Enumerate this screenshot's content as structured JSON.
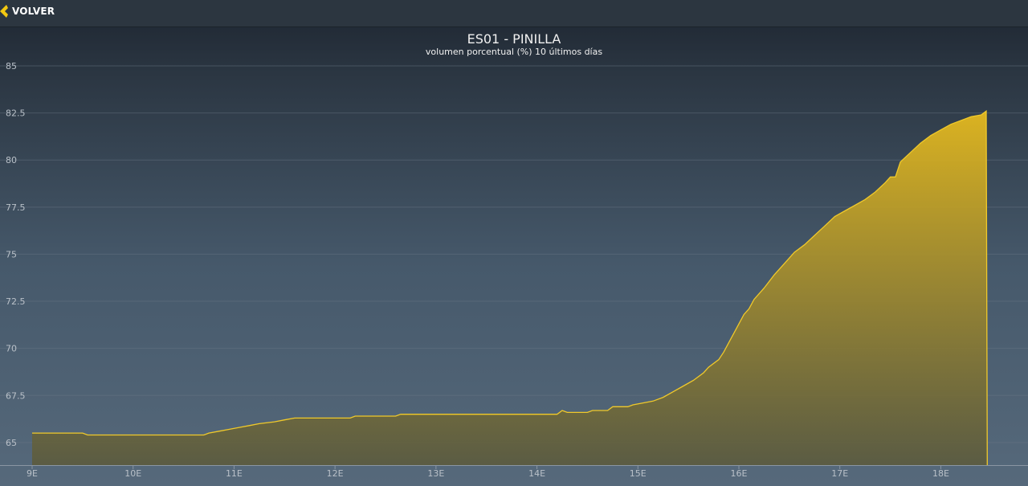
{
  "nav": {
    "back_label": "VOLVER",
    "back_icon": "chevron-left-icon",
    "accent": "#f2c811"
  },
  "chart_data": {
    "type": "area",
    "title": "ES01 - PINILLA",
    "subtitle": "volumen porcentual (%) 10 últimos días",
    "xlabel": "",
    "ylabel": "",
    "x_ticks": [
      "9E",
      "10E",
      "11E",
      "12E",
      "13E",
      "14E",
      "15E",
      "16E",
      "17E",
      "18E"
    ],
    "xlim": [
      9.0,
      18.7
    ],
    "ylim": [
      63.8,
      85
    ],
    "y_ticks": [
      65,
      67.5,
      70,
      72.5,
      75,
      77.5,
      80,
      82.5,
      85
    ],
    "grid": true,
    "legend": "none",
    "color": "#f0c92a",
    "series": [
      {
        "points": [
          [
            9.0,
            65.5
          ],
          [
            9.5,
            65.5
          ],
          [
            9.55,
            65.4
          ],
          [
            10.7,
            65.4
          ],
          [
            10.75,
            65.5
          ],
          [
            10.85,
            65.6
          ],
          [
            10.95,
            65.7
          ],
          [
            11.05,
            65.8
          ],
          [
            11.15,
            65.9
          ],
          [
            11.25,
            66.0
          ],
          [
            11.4,
            66.1
          ],
          [
            11.5,
            66.2
          ],
          [
            11.6,
            66.3
          ],
          [
            12.15,
            66.3
          ],
          [
            12.2,
            66.4
          ],
          [
            12.6,
            66.4
          ],
          [
            12.65,
            66.5
          ],
          [
            14.2,
            66.5
          ],
          [
            14.25,
            66.7
          ],
          [
            14.3,
            66.6
          ],
          [
            14.5,
            66.6
          ],
          [
            14.55,
            66.7
          ],
          [
            14.7,
            66.7
          ],
          [
            14.75,
            66.9
          ],
          [
            14.9,
            66.9
          ],
          [
            14.95,
            67.0
          ],
          [
            15.05,
            67.1
          ],
          [
            15.15,
            67.2
          ],
          [
            15.25,
            67.4
          ],
          [
            15.35,
            67.7
          ],
          [
            15.45,
            68.0
          ],
          [
            15.55,
            68.3
          ],
          [
            15.65,
            68.7
          ],
          [
            15.7,
            69.0
          ],
          [
            15.8,
            69.4
          ],
          [
            15.85,
            69.8
          ],
          [
            15.9,
            70.3
          ],
          [
            15.95,
            70.8
          ],
          [
            16.0,
            71.3
          ],
          [
            16.05,
            71.8
          ],
          [
            16.1,
            72.1
          ],
          [
            16.15,
            72.6
          ],
          [
            16.25,
            73.2
          ],
          [
            16.35,
            73.9
          ],
          [
            16.45,
            74.5
          ],
          [
            16.55,
            75.1
          ],
          [
            16.65,
            75.5
          ],
          [
            16.75,
            76.0
          ],
          [
            16.85,
            76.5
          ],
          [
            16.95,
            77.0
          ],
          [
            17.05,
            77.3
          ],
          [
            17.15,
            77.6
          ],
          [
            17.25,
            77.9
          ],
          [
            17.35,
            78.3
          ],
          [
            17.45,
            78.8
          ],
          [
            17.5,
            79.1
          ],
          [
            17.55,
            79.1
          ],
          [
            17.6,
            79.9
          ],
          [
            17.7,
            80.4
          ],
          [
            17.8,
            80.9
          ],
          [
            17.9,
            81.3
          ],
          [
            18.0,
            81.6
          ],
          [
            18.1,
            81.9
          ],
          [
            18.2,
            82.1
          ],
          [
            18.3,
            82.3
          ],
          [
            18.4,
            82.4
          ],
          [
            18.45,
            82.6
          ],
          [
            18.46,
            63.8
          ]
        ]
      }
    ]
  }
}
